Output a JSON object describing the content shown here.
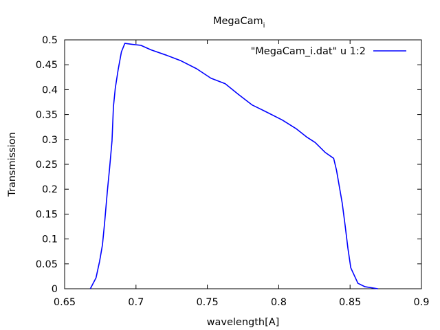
{
  "chart_data": {
    "type": "line",
    "title_main": "MegaCam",
    "title_sub": "i",
    "xlabel": "wavelength[A]",
    "ylabel": "Transmission",
    "xlim": [
      0.65,
      0.9
    ],
    "ylim": [
      0,
      0.5
    ],
    "xticks": [
      "0.65",
      "0.7",
      "0.75",
      "0.8",
      "0.85",
      "0.9"
    ],
    "yticks": [
      "0",
      "0.05",
      "0.1",
      "0.15",
      "0.2",
      "0.25",
      "0.3",
      "0.35",
      "0.4",
      "0.45",
      "0.5"
    ],
    "grid": false,
    "legend_position": "top-right",
    "series": [
      {
        "name": "\"MegaCam_i.dat\" u 1:2",
        "color": "#0000ff",
        "x": [
          0.668,
          0.672,
          0.6745,
          0.6765,
          0.678,
          0.679,
          0.68,
          0.6815,
          0.6832,
          0.6842,
          0.6855,
          0.6875,
          0.6898,
          0.6922,
          0.6975,
          0.7035,
          0.7105,
          0.7215,
          0.7315,
          0.7425,
          0.7525,
          0.7625,
          0.7715,
          0.7815,
          0.7915,
          0.8025,
          0.8125,
          0.8195,
          0.8255,
          0.8325,
          0.8385,
          0.8405,
          0.8425,
          0.8445,
          0.8465,
          0.8485,
          0.8505,
          0.8555,
          0.8605,
          0.8695
        ],
        "y": [
          0.0,
          0.022,
          0.055,
          0.088,
          0.132,
          0.165,
          0.198,
          0.242,
          0.297,
          0.366,
          0.403,
          0.44,
          0.476,
          0.493,
          0.491,
          0.489,
          0.48,
          0.469,
          0.458,
          0.442,
          0.423,
          0.412,
          0.391,
          0.369,
          0.355,
          0.339,
          0.321,
          0.305,
          0.294,
          0.274,
          0.262,
          0.238,
          0.205,
          0.172,
          0.128,
          0.081,
          0.042,
          0.011,
          0.004,
          0.0
        ]
      }
    ]
  }
}
